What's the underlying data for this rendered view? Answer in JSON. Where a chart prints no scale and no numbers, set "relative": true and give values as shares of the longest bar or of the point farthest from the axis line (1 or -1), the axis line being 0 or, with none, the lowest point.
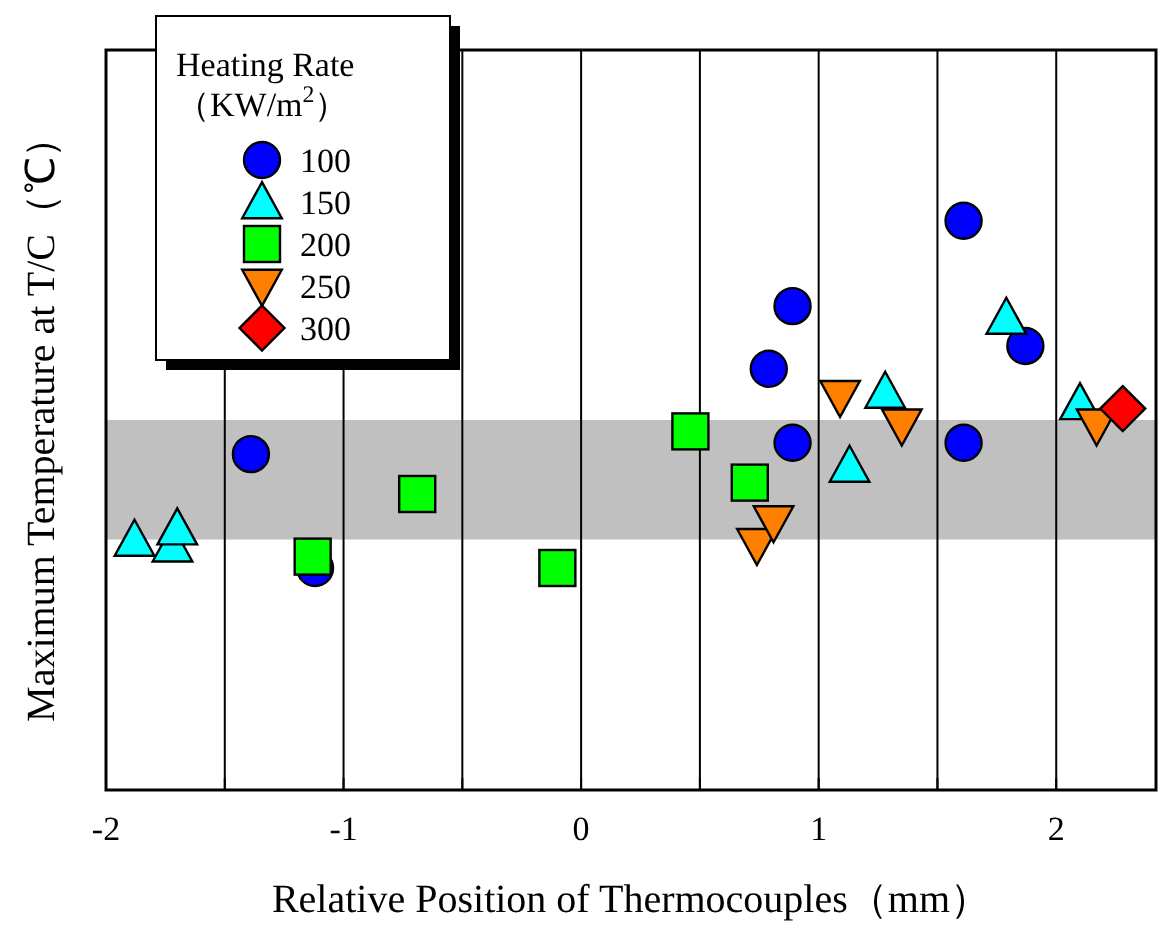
{
  "chart_data": {
    "type": "scatter",
    "relative": true,
    "xlabel": "Relative Position of Thermocouples（mm）",
    "ylabel": "Maximum Temperature at T/C（℃）",
    "legend_title": "Heating Rate\n（KW/m$^{2}$）",
    "legend": "top left",
    "grid": "x",
    "xlim": [
      -2,
      2.42
    ],
    "xticks": [
      -2,
      {
        "value": -1.5,
        "label": null
      },
      -1,
      {
        "value": -0.5,
        "label": null
      },
      0,
      {
        "value": 0.5,
        "label": null
      },
      1,
      {
        "value": 1.5,
        "label": null
      },
      2
    ],
    "bands": [
      {
        "axis": "y",
        "from": 0.44,
        "to": 0.65,
        "color": "#c0c0c0"
      }
    ],
    "series": [
      {
        "name": "100",
        "color": "#0000ff",
        "marker": "circle",
        "x": [
          -1.39,
          -1.12,
          0.79,
          0.89,
          0.89,
          1.61,
          1.61,
          1.87
        ],
        "values": [
          0.59,
          0.39,
          0.74,
          0.85,
          0.61,
          1.0,
          0.61,
          0.78
        ]
      },
      {
        "name": "150",
        "color": "#00ffff",
        "marker": "triangle",
        "x": [
          -1.88,
          -1.72,
          -1.7,
          1.13,
          1.28,
          1.79,
          2.1
        ],
        "values": [
          0.44,
          0.43,
          0.46,
          0.57,
          0.7,
          0.83,
          0.68
        ]
      },
      {
        "name": "200",
        "color": "#00ff00",
        "marker": "square",
        "x": [
          -1.13,
          -0.69,
          -0.1,
          0.46,
          0.71
        ],
        "values": [
          0.41,
          0.52,
          0.39,
          0.63,
          0.54
        ]
      },
      {
        "name": "250",
        "color": "#ff8000",
        "marker": "triangle-down",
        "x": [
          0.74,
          0.81,
          1.09,
          1.35,
          2.17
        ],
        "values": [
          0.43,
          0.47,
          0.69,
          0.64,
          0.64
        ]
      },
      {
        "name": "300",
        "color": "#ff0000",
        "marker": "diamond",
        "x": [
          2.28
        ],
        "values": [
          0.67
        ]
      }
    ]
  }
}
